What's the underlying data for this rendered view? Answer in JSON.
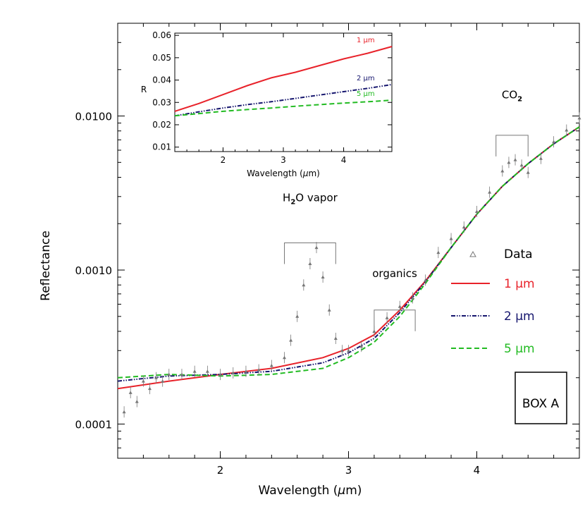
{
  "chart_data": [
    {
      "type": "line",
      "scale_y": "log",
      "xlabel_prefix": "Wavelength (",
      "xlabel_mu": "μ",
      "xlabel_suffix": "m)",
      "ylabel": "Reflectance",
      "xlim": [
        1.2,
        4.8
      ],
      "ylim": [
        6e-05,
        0.04
      ],
      "x_ticks": [
        "2",
        "3",
        "4"
      ],
      "y_ticks": [
        "0.0001",
        "0.0010",
        "0.0100"
      ],
      "series": [
        {
          "name": "1 μm",
          "name_num": "1",
          "color": "#e8222a",
          "dash": "",
          "x": [
            1.2,
            1.6,
            2.0,
            2.4,
            2.8,
            3.0,
            3.2,
            3.4,
            3.6,
            3.8,
            4.0,
            4.2,
            4.4,
            4.6,
            4.8
          ],
          "y": [
            0.00017,
            0.00019,
            0.00021,
            0.00023,
            0.00027,
            0.00031,
            0.00038,
            0.00055,
            0.00085,
            0.0014,
            0.0023,
            0.0035,
            0.0049,
            0.0066,
            0.0085
          ]
        },
        {
          "name": "2 μm",
          "name_num": "2",
          "color": "#16166e",
          "dash": "6,2,1.5,2,1.5,2",
          "x": [
            1.2,
            1.6,
            2.0,
            2.4,
            2.8,
            3.0,
            3.2,
            3.4,
            3.6,
            3.8,
            4.0,
            4.2,
            4.4,
            4.6,
            4.8
          ],
          "y": [
            0.00019,
            0.000205,
            0.00021,
            0.00022,
            0.00025,
            0.00029,
            0.00036,
            0.00053,
            0.00084,
            0.0014,
            0.0023,
            0.0035,
            0.0049,
            0.0066,
            0.0085
          ]
        },
        {
          "name": "5 μm",
          "name_num": "5",
          "color": "#22bb22",
          "dash": "7,4",
          "x": [
            1.2,
            1.6,
            2.0,
            2.4,
            2.8,
            3.0,
            3.2,
            3.4,
            3.6,
            3.8,
            4.0,
            4.2,
            4.4,
            4.6,
            4.8
          ],
          "y": [
            0.0002,
            0.00021,
            0.000205,
            0.00021,
            0.00023,
            0.00027,
            0.00034,
            0.0005,
            0.00082,
            0.0014,
            0.0023,
            0.0035,
            0.0049,
            0.0066,
            0.0085
          ]
        }
      ],
      "data_series": {
        "name": "Data",
        "color": "#777777",
        "x": [
          1.25,
          1.3,
          1.35,
          1.4,
          1.45,
          1.5,
          1.55,
          1.6,
          1.7,
          1.8,
          1.9,
          2.0,
          2.1,
          2.2,
          2.3,
          2.4,
          2.5,
          2.55,
          2.6,
          2.65,
          2.7,
          2.75,
          2.8,
          2.85,
          2.9,
          2.95,
          3.0,
          3.1,
          3.2,
          3.3,
          3.4,
          3.5,
          3.6,
          3.7,
          3.8,
          3.9,
          4.0,
          4.1,
          4.2,
          4.25,
          4.3,
          4.35,
          4.4,
          4.5,
          4.6,
          4.7,
          4.8
        ],
        "y": [
          0.00012,
          0.00016,
          0.00014,
          0.00019,
          0.00017,
          0.0002,
          0.00019,
          0.00021,
          0.00021,
          0.00022,
          0.00022,
          0.00021,
          0.000215,
          0.00022,
          0.000225,
          0.00024,
          0.00027,
          0.00035,
          0.0005,
          0.0008,
          0.0011,
          0.0014,
          0.0009,
          0.00055,
          0.00036,
          0.0003,
          0.0003,
          0.00032,
          0.0004,
          0.00049,
          0.00058,
          0.00066,
          0.00086,
          0.0013,
          0.0016,
          0.0019,
          0.0024,
          0.0032,
          0.0044,
          0.005,
          0.0052,
          0.0048,
          0.0043,
          0.0053,
          0.0068,
          0.0081,
          0.0097
        ]
      },
      "annotations": [
        {
          "prefix": "H",
          "sub": "2",
          "suffix": "O vapor",
          "x1": 2.5,
          "x2": 2.9,
          "bracket_y": 0.0015,
          "label_y": 0.0028
        },
        {
          "prefix": "organics",
          "sub": "",
          "suffix": "",
          "x1": 3.2,
          "x2": 3.52,
          "bracket_y": 0.00055,
          "label_y": 0.0009
        },
        {
          "prefix": "CO",
          "sub": "2",
          "suffix": "",
          "x1": 4.15,
          "x2": 4.4,
          "bracket_y": 0.0075,
          "label_y": 0.013
        }
      ],
      "legend_placement": "right",
      "box_label": "BOX A"
    },
    {
      "type": "line",
      "xlabel_prefix": "Wavelength (",
      "xlabel_mu": "μ",
      "xlabel_suffix": "m)",
      "ylabel": "R",
      "xlim": [
        1.2,
        4.8
      ],
      "ylim": [
        0.008,
        0.061
      ],
      "x_ticks": [
        "2",
        "3",
        "4"
      ],
      "y_ticks": [
        "0.01",
        "0.02",
        "0.03",
        "0.04",
        "0.05",
        "0.06"
      ],
      "series": [
        {
          "name": "1 μm",
          "name_num": "1",
          "color": "#e8222a",
          "dash": "",
          "x": [
            1.2,
            1.6,
            2.0,
            2.4,
            2.8,
            3.2,
            3.6,
            4.0,
            4.4,
            4.8
          ],
          "y": [
            0.026,
            0.0295,
            0.0335,
            0.0375,
            0.041,
            0.0435,
            0.0465,
            0.0495,
            0.052,
            0.055
          ]
        },
        {
          "name": "2 μm",
          "name_num": "2",
          "color": "#16166e",
          "dash": "6,2,1.5,2,1.5,2",
          "x": [
            1.2,
            1.6,
            2.0,
            2.4,
            2.8,
            3.2,
            3.6,
            4.0,
            4.4,
            4.8
          ],
          "y": [
            0.024,
            0.0258,
            0.0275,
            0.029,
            0.0303,
            0.0318,
            0.0333,
            0.0348,
            0.0363,
            0.038
          ]
        },
        {
          "name": "5 μm",
          "name_num": "5",
          "color": "#22bb22",
          "dash": "7,4",
          "x": [
            1.2,
            1.6,
            2.0,
            2.4,
            2.8,
            3.2,
            3.6,
            4.0,
            4.4,
            4.8
          ],
          "y": [
            0.024,
            0.025,
            0.026,
            0.0268,
            0.0275,
            0.0283,
            0.029,
            0.0297,
            0.0303,
            0.031
          ]
        }
      ]
    }
  ]
}
